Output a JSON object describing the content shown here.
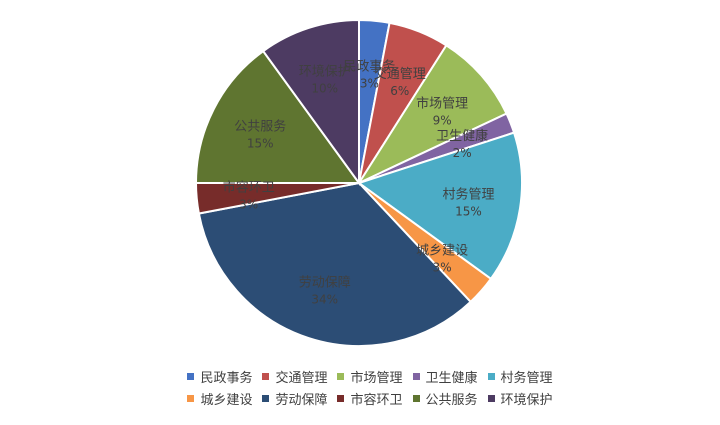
{
  "chart_data": {
    "type": "pie",
    "title": "",
    "categories": [
      "民政事务",
      "交通管理",
      "市场管理",
      "卫生健康",
      "村务管理",
      "城乡建设",
      "劳动保障",
      "市容环卫",
      "公共服务",
      "环境保护"
    ],
    "values": [
      3,
      6,
      9,
      2,
      15,
      3,
      34,
      3,
      15,
      10
    ],
    "value_labels": [
      "3%",
      "6%",
      "9%",
      "2%",
      "15%",
      "3%",
      "34%",
      "3%",
      "15%",
      "10%"
    ],
    "colors": [
      "#4472C4",
      "#C0504D",
      "#9BBB59",
      "#8064A2",
      "#4BACC6",
      "#F79646",
      "#2C4D75",
      "#772C2A",
      "#5F7530",
      "#4D3B62"
    ],
    "start_angle_deg": 0,
    "direction": "clockwise",
    "legend": "bottom",
    "grid": false
  }
}
